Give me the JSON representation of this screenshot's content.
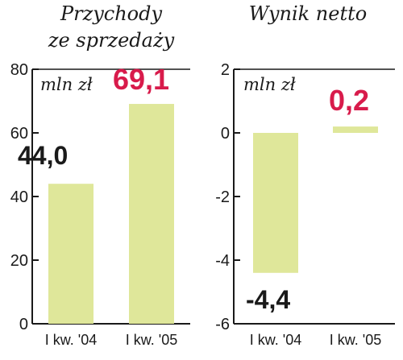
{
  "colors": {
    "bar": "#dfe79a",
    "highlight": "#d81b4b",
    "text": "#1a1a1a",
    "axis": "#1a1a1a"
  },
  "chart_data": [
    {
      "type": "bar",
      "title": "Przychody ze sprzedaży",
      "title_lines": [
        "Przychody",
        "ze sprzedaży"
      ],
      "unit": "mln zł",
      "categories": [
        "I kw. '04",
        "I kw. '05"
      ],
      "values": [
        44.0,
        69.1
      ],
      "value_labels": [
        "44,0",
        "69,1"
      ],
      "ylim": [
        0,
        80
      ],
      "yticks": [
        0,
        20,
        40,
        60,
        80
      ],
      "ytick_labels": [
        "0",
        "20",
        "40",
        "60",
        "80"
      ],
      "grid": false,
      "highlight_index": 1
    },
    {
      "type": "bar",
      "title": "Wynik netto",
      "title_lines": [
        "Wynik netto"
      ],
      "unit": "mln zł",
      "categories": [
        "I kw. '04",
        "I kw. '05"
      ],
      "values": [
        -4.4,
        0.2
      ],
      "value_labels": [
        "-4,4",
        "0,2"
      ],
      "ylim": [
        -6,
        2
      ],
      "yticks": [
        -6,
        -4,
        -2,
        0,
        2
      ],
      "ytick_labels": [
        "-6",
        "-4",
        "-2",
        "0",
        "2"
      ],
      "grid": false,
      "highlight_index": 1
    }
  ]
}
